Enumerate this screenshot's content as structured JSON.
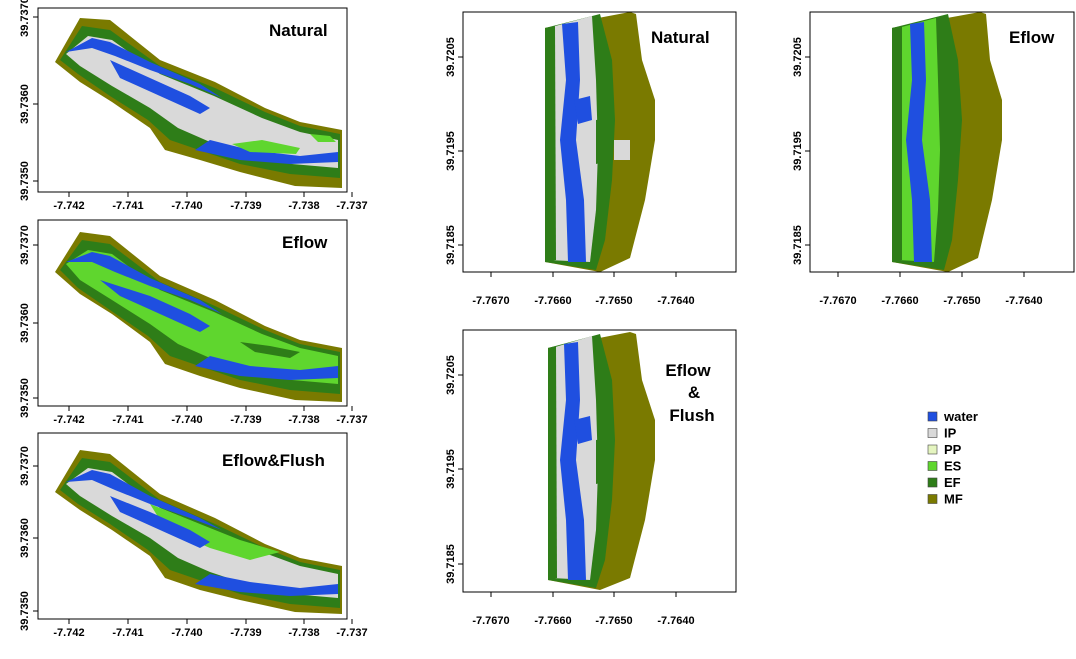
{
  "legend": {
    "items": [
      {
        "label": "water",
        "color": "#1f4fe0"
      },
      {
        "label": "IP",
        "color": "#d9d9d9"
      },
      {
        "label": "PP",
        "color": "#e5f5c0"
      },
      {
        "label": "ES",
        "color": "#5fd62e"
      },
      {
        "label": "EF",
        "color": "#2e7d18"
      },
      {
        "label": "MF",
        "color": "#7a7a00"
      }
    ]
  },
  "left_panels": {
    "x_ticks": [
      "-7.742",
      "-7.741",
      "-7.740",
      "-7.739",
      "-7.738",
      "-7.737"
    ],
    "y_ticks": [
      "39.7370",
      "39.7360",
      "39.7350"
    ],
    "titles": [
      "Natural",
      "Eflow",
      "Eflow&Flush"
    ]
  },
  "right_panels": {
    "x_ticks": [
      "-7.7670",
      "-7.7660",
      "-7.7650",
      "-7.7640"
    ],
    "y_ticks": [
      "39.7205",
      "39.7195",
      "39.7185"
    ],
    "natural_title": "Natural",
    "eflow_title": "Eflow",
    "flush_title_lines": [
      "Eflow",
      "&",
      "Flush"
    ]
  }
}
